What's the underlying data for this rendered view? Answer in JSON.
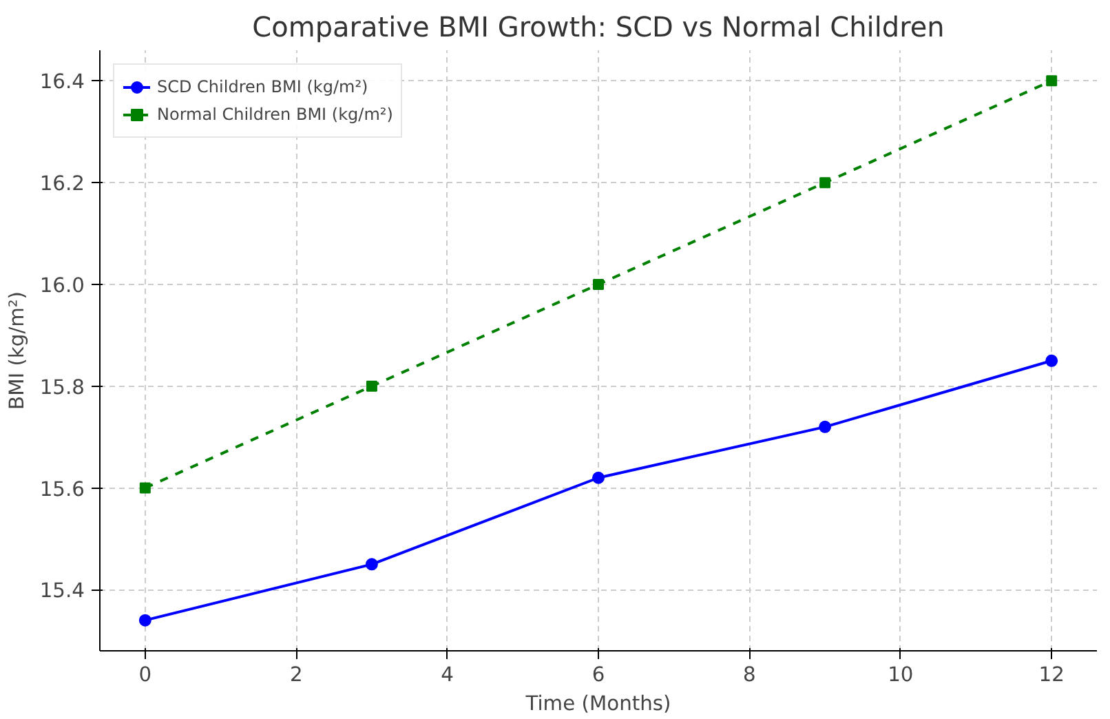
{
  "chart_data": {
    "type": "line",
    "title": "Comparative BMI Growth: SCD vs Normal Children",
    "xlabel": "Time (Months)",
    "ylabel": "BMI (kg/m²)",
    "x": [
      0,
      3,
      6,
      9,
      12
    ],
    "series": [
      {
        "name": "SCD Children BMI (kg/m²)",
        "color": "#0000ff",
        "values": [
          15.34,
          15.45,
          15.62,
          15.72,
          15.85
        ],
        "marker": "circle",
        "line_style": "solid"
      },
      {
        "name": "Normal Children BMI (kg/m²)",
        "color": "#008000",
        "values": [
          15.6,
          15.8,
          16.0,
          16.2,
          16.4
        ],
        "marker": "square",
        "line_style": "dashed"
      }
    ],
    "xlim": [
      -0.6,
      12.6
    ],
    "ylim": [
      15.28,
      16.46
    ],
    "xticks": [
      0,
      2,
      4,
      6,
      8,
      10,
      12
    ],
    "yticks": [
      15.4,
      15.6,
      15.8,
      {
        "value": 16,
        "label": "16.0"
      },
      16.2,
      16.4
    ],
    "grid": true,
    "legend": "top left"
  }
}
